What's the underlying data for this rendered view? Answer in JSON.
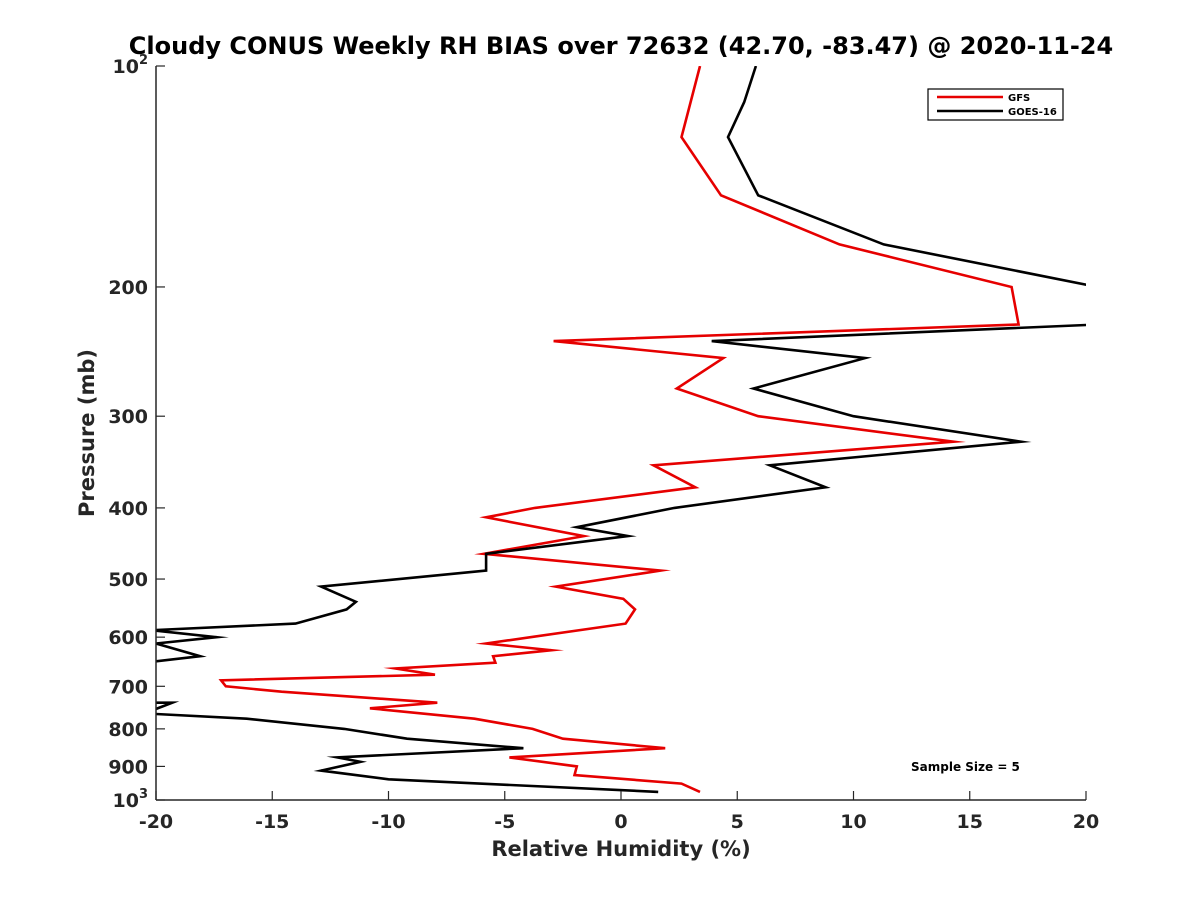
{
  "chart_data": {
    "type": "line",
    "title": "Cloudy CONUS Weekly RH BIAS over 72632 (42.70, -83.47) @ 2020-11-24",
    "xlabel": "Relative Humidity (%)",
    "ylabel": "Pressure (mb)",
    "xlim": [
      -20,
      20
    ],
    "ylim": [
      100,
      1000
    ],
    "y_scale": "log",
    "y_reversed": true,
    "grid": false,
    "legend_position": "top-right",
    "x_ticks": [
      "-20",
      "-15",
      "-10",
      "-5",
      "0",
      "5",
      "10",
      "15",
      "20"
    ],
    "y_ticks": [
      {
        "value": 100,
        "base": "10",
        "exp": "2"
      },
      {
        "value": 200,
        "label": "200"
      },
      {
        "value": 300,
        "label": "300"
      },
      {
        "value": 400,
        "label": "400"
      },
      {
        "value": 500,
        "label": "500"
      },
      {
        "value": 600,
        "label": "600"
      },
      {
        "value": 700,
        "label": "700"
      },
      {
        "value": 800,
        "label": "800"
      },
      {
        "value": 900,
        "label": "900"
      },
      {
        "value": 1000,
        "base": "10",
        "exp": "3"
      }
    ],
    "series": [
      {
        "name": "GFS",
        "color": "#e60000",
        "points": [
          [
            3.4,
            975
          ],
          [
            2.6,
            950
          ],
          [
            -2.0,
            925
          ],
          [
            -1.9,
            900
          ],
          [
            -4.8,
            875
          ],
          [
            1.9,
            850
          ],
          [
            -2.5,
            825
          ],
          [
            -3.8,
            800
          ],
          [
            -6.3,
            775
          ],
          [
            -10.8,
            750
          ],
          [
            -7.9,
            737
          ],
          [
            -14.6,
            712
          ],
          [
            -17.0,
            700
          ],
          [
            -17.2,
            687
          ],
          [
            -8.0,
            675
          ],
          [
            -9.7,
            662
          ],
          [
            -5.4,
            650
          ],
          [
            -5.5,
            637
          ],
          [
            -3.0,
            625
          ],
          [
            -5.8,
            612
          ],
          [
            0.2,
            575
          ],
          [
            0.6,
            550
          ],
          [
            0.1,
            532
          ],
          [
            -2.8,
            512
          ],
          [
            1.7,
            487
          ],
          [
            -5.9,
            462
          ],
          [
            -1.6,
            437
          ],
          [
            -5.8,
            412
          ],
          [
            -3.7,
            400
          ],
          [
            3.2,
            375
          ],
          [
            1.4,
            350
          ],
          [
            14.3,
            325
          ],
          [
            5.9,
            300
          ],
          [
            2.4,
            275
          ],
          [
            4.4,
            250
          ],
          [
            -2.9,
            237
          ],
          [
            17.1,
            225
          ],
          [
            16.8,
            200
          ],
          [
            9.4,
            175
          ],
          [
            4.3,
            150
          ],
          [
            2.6,
            125
          ],
          [
            3.4,
            100
          ]
        ]
      },
      {
        "name": "GOES-16",
        "color": "#000000",
        "points": [
          [
            1.6,
            975
          ],
          [
            -10.0,
            937
          ],
          [
            -12.9,
            912
          ],
          [
            -11.2,
            887
          ],
          [
            -12.2,
            875
          ],
          [
            -4.2,
            850
          ],
          [
            -9.2,
            825
          ],
          [
            -11.9,
            800
          ],
          [
            -16.1,
            775
          ],
          [
            -20.5,
            762
          ],
          [
            -19.3,
            737
          ],
          [
            -20.5,
            737
          ],
          [
            -20.5,
            650
          ],
          [
            -18.1,
            637
          ],
          [
            -20.0,
            612
          ],
          [
            -17.4,
            600
          ],
          [
            -20.2,
            587
          ],
          [
            -14.0,
            575
          ],
          [
            -11.8,
            550
          ],
          [
            -11.4,
            537
          ],
          [
            -12.9,
            512
          ],
          [
            -5.8,
            487
          ],
          [
            -5.8,
            462
          ],
          [
            0.3,
            437
          ],
          [
            -1.9,
            425
          ],
          [
            2.3,
            400
          ],
          [
            8.8,
            375
          ],
          [
            6.4,
            350
          ],
          [
            17.2,
            325
          ],
          [
            10.0,
            300
          ],
          [
            5.7,
            275
          ],
          [
            10.5,
            250
          ],
          [
            3.9,
            237
          ],
          [
            20.5,
            225
          ],
          [
            20.5,
            200
          ],
          [
            11.3,
            175
          ],
          [
            5.9,
            150
          ],
          [
            4.6,
            125
          ],
          [
            5.3,
            112
          ],
          [
            5.8,
            100
          ]
        ]
      }
    ],
    "annotation": "Sample Size = 5"
  }
}
